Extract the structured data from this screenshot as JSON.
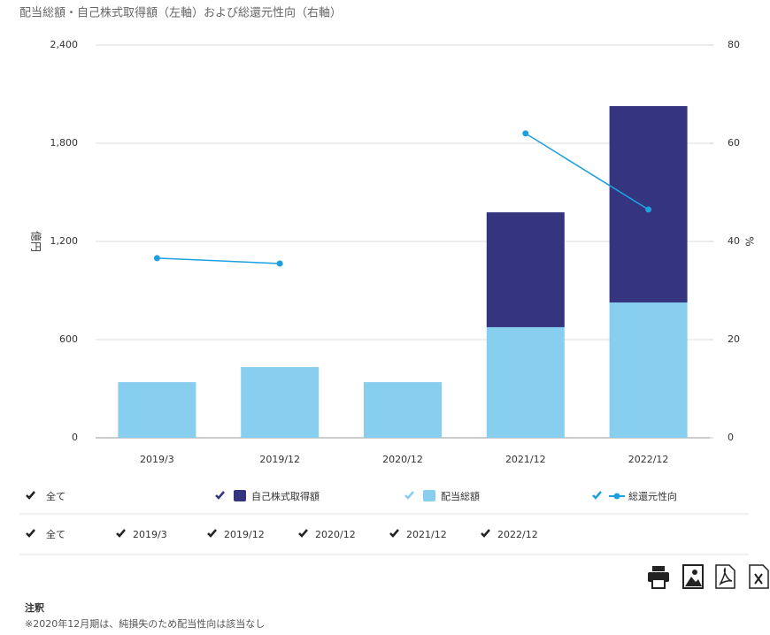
{
  "chart_data": {
    "type": "bar",
    "title": "配当総額・自己株式取得額（左軸）および総還元性向（右軸）",
    "y_label": "億円",
    "y2_label": "%",
    "categories": [
      "2019/3",
      "2019/12",
      "2020/12",
      "2021/12",
      "2022/12"
    ],
    "series": [
      {
        "name": "配当総額",
        "color": "#87ceef",
        "type": "bar",
        "values": [
          340,
          432,
          340,
          676,
          827
        ]
      },
      {
        "name": "自己株式取得額",
        "color": "#35347e",
        "type": "bar",
        "values": [
          null,
          null,
          null,
          702,
          1200
        ]
      },
      {
        "name": "総還元性向",
        "color": "#1ea0e0",
        "type": "line",
        "axis": "y2",
        "values": [
          36.6,
          35.5,
          null,
          62,
          46.5
        ]
      }
    ],
    "legend_order": [
      1,
      0,
      2
    ],
    "stacked": true,
    "ylim": [
      0,
      2400
    ],
    "yticks": [
      0,
      600,
      {
        "value": 1200,
        "label": "1,200"
      },
      {
        "value": 1800,
        "label": "1,800"
      },
      {
        "value": 2400,
        "label": "2,400"
      }
    ],
    "y2lim": [
      0,
      80
    ],
    "y2ticks": [
      0,
      20,
      40,
      60,
      80
    ],
    "grid": true
  },
  "filters": {
    "all": "全て"
  },
  "note": {
    "heading": "注釈",
    "text": "※2020年12月期は、純損失のため配当性向は該当なし"
  }
}
